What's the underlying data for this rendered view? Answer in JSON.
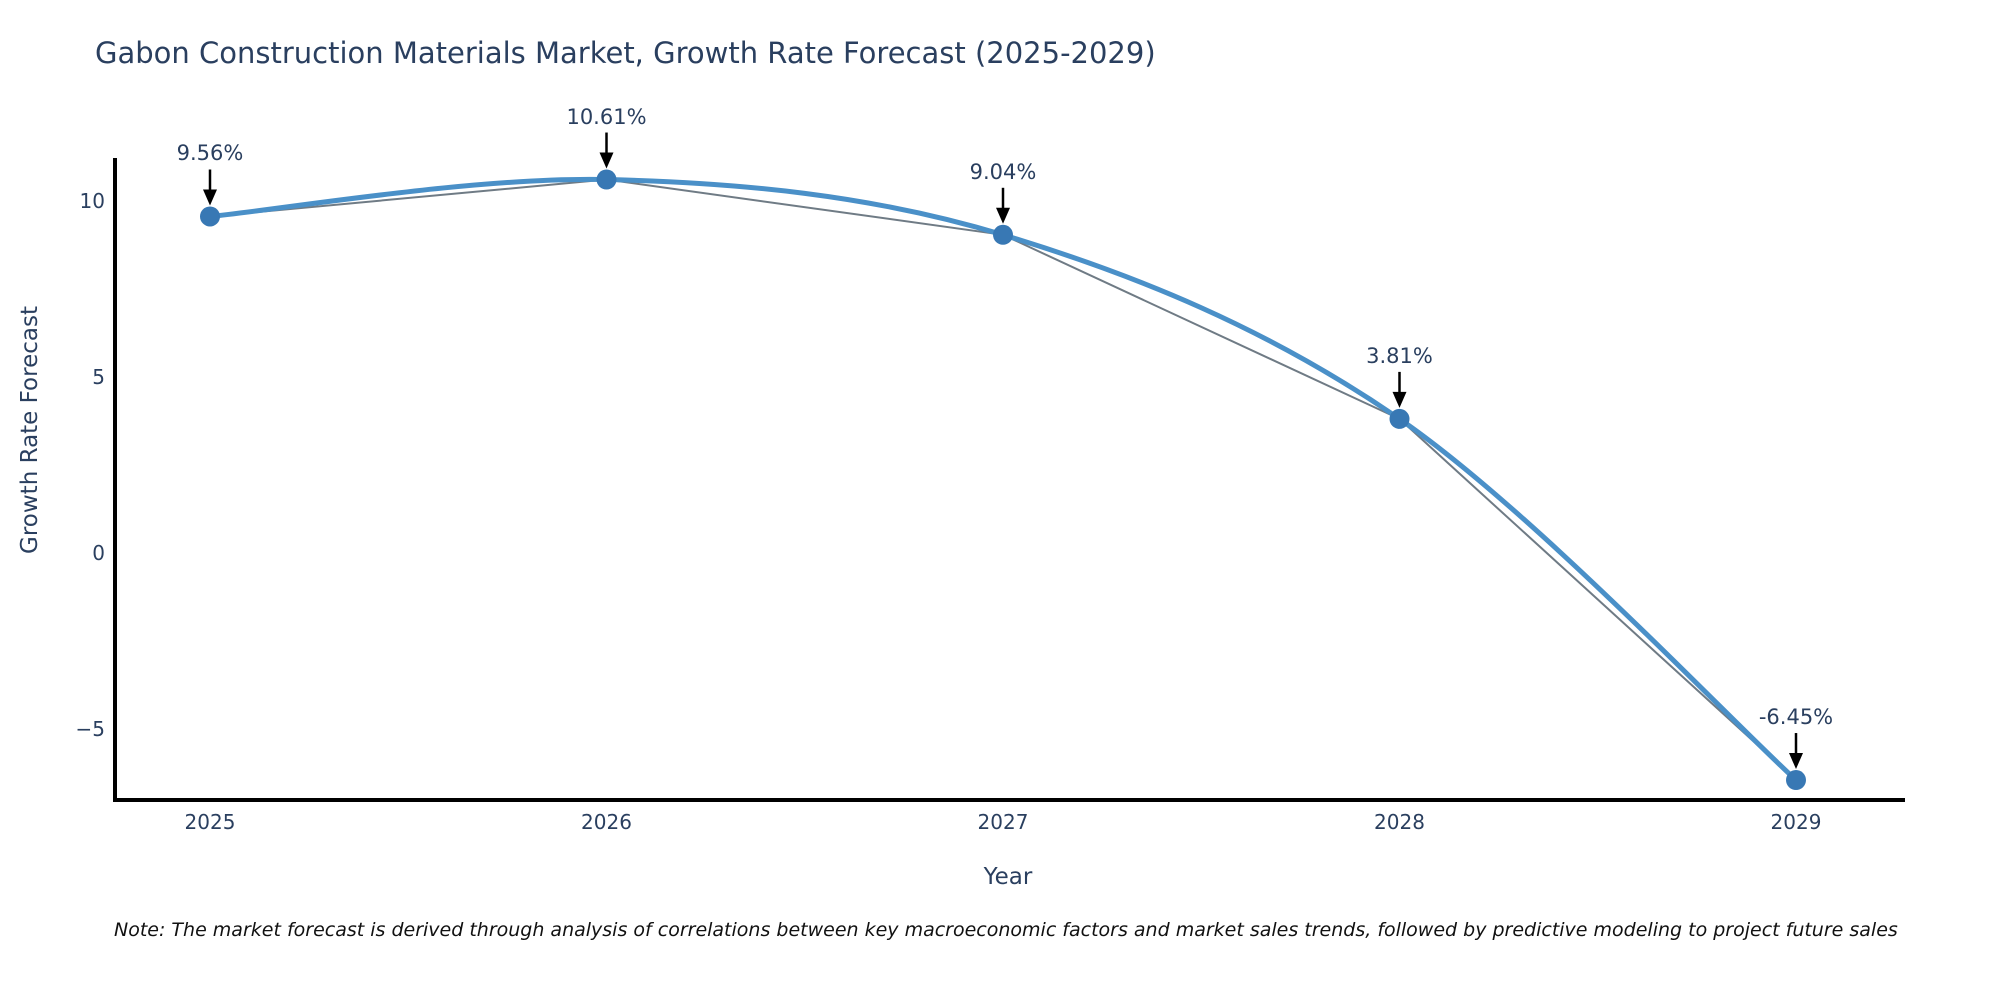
{
  "chart": {
    "title": "Gabon Construction Materials Market, Growth Rate Forecast (2025-2029)",
    "xlabel": "Year",
    "ylabel": "Growth Rate Forecast",
    "note": "Note: The market forecast is derived through analysis of correlations between key macroeconomic factors and market sales trends, followed by predictive modeling to project future sales",
    "colors": {
      "title_text": "#2a3f5f",
      "tick_text": "#2a3f5f",
      "annotation_text": "#2a3f5f",
      "line": "#4a90c8",
      "line_underlay": "#6f7b85",
      "marker": "#3878b4",
      "axis": "#000000",
      "arrow": "#000000",
      "background": "#ffffff",
      "note_text": "#111111"
    }
  },
  "chart_data": {
    "type": "line",
    "line_shape": "spline",
    "title": "Gabon Construction Materials Market, Growth Rate Forecast (2025-2029)",
    "xlabel": "Year",
    "ylabel": "Growth Rate Forecast",
    "categories": [
      "2025",
      "2026",
      "2027",
      "2028",
      "2029"
    ],
    "x": [
      2025,
      2026,
      2027,
      2028,
      2029
    ],
    "values": [
      9.56,
      10.61,
      9.04,
      3.81,
      -6.45
    ],
    "point_labels": [
      "9.56%",
      "10.61%",
      "9.04%",
      "3.81%",
      "-6.45%"
    ],
    "ytick_values": [
      10,
      5,
      0,
      -5
    ],
    "ytick_labels": [
      "10",
      "5",
      "0",
      "−5"
    ],
    "ylim": [
      -7.0,
      11.2
    ],
    "xlim": [
      2024.76,
      2029.27
    ],
    "grid": false,
    "legend": false,
    "annotations": "each point labeled with its percent value and a downward black arrow",
    "markers": true
  }
}
